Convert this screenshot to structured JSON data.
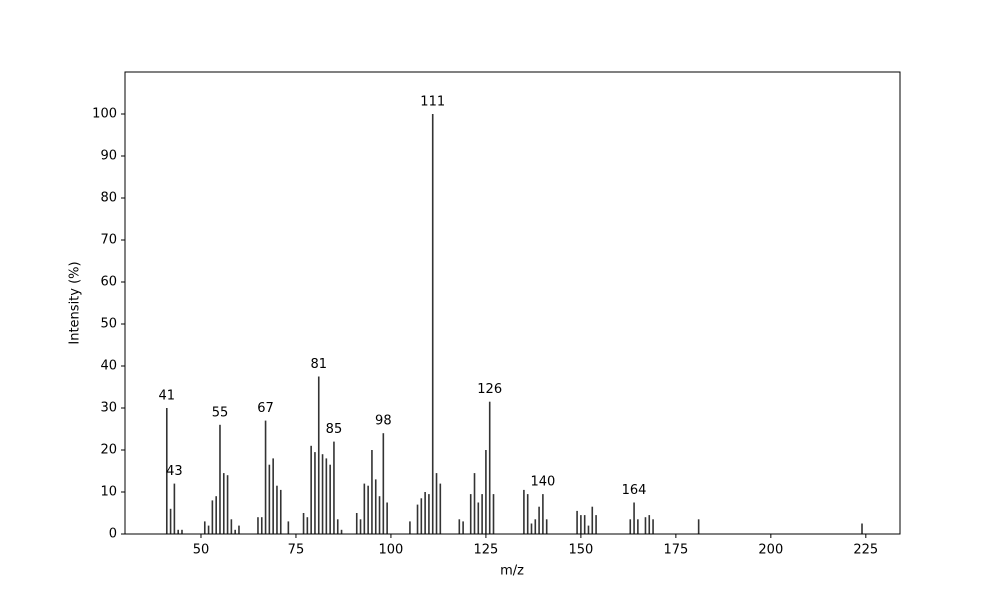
{
  "chart_data": {
    "type": "spectrum",
    "xlabel": "m/z",
    "ylabel": "Intensity (%)",
    "x": [
      41,
      42,
      43,
      44,
      45,
      51,
      52,
      53,
      54,
      55,
      56,
      57,
      58,
      59,
      60,
      65,
      66,
      67,
      68,
      69,
      70,
      71,
      73,
      77,
      78,
      79,
      80,
      81,
      82,
      83,
      84,
      85,
      86,
      87,
      91,
      92,
      93,
      94,
      95,
      96,
      97,
      98,
      99,
      105,
      107,
      108,
      109,
      110,
      111,
      112,
      113,
      118,
      119,
      121,
      122,
      123,
      124,
      125,
      126,
      127,
      135,
      136,
      137,
      138,
      139,
      140,
      141,
      149,
      150,
      151,
      152,
      153,
      154,
      163,
      164,
      165,
      167,
      168,
      169,
      181,
      224
    ],
    "values": [
      30,
      6,
      12,
      1,
      1,
      3,
      2,
      8,
      9,
      26,
      14.5,
      14,
      3.5,
      1,
      2,
      4,
      4,
      27,
      16.5,
      18,
      11.5,
      10.5,
      3,
      5,
      4,
      21,
      19.5,
      37.5,
      19,
      18,
      16.5,
      22,
      3.5,
      1,
      5,
      3.5,
      12,
      11.5,
      20,
      13,
      9,
      24,
      7.5,
      3,
      7,
      8.5,
      10,
      9.5,
      100,
      14.5,
      12,
      3.5,
      3,
      9.5,
      14.5,
      7.5,
      9.5,
      20,
      31.5,
      9.5,
      10.5,
      9.5,
      2.5,
      3.5,
      6.5,
      9.5,
      3.5,
      5.5,
      4.5,
      4.5,
      2,
      6.5,
      4.5,
      3.5,
      7.5,
      3.5,
      4,
      4.5,
      3.5,
      3.5,
      2.5
    ],
    "x_labels": [
      "41",
      null,
      "43",
      null,
      null,
      null,
      null,
      null,
      null,
      "55",
      null,
      null,
      null,
      null,
      null,
      null,
      null,
      "67",
      null,
      null,
      null,
      null,
      null,
      null,
      null,
      null,
      null,
      "81",
      null,
      null,
      null,
      "85",
      null,
      null,
      null,
      null,
      null,
      null,
      null,
      null,
      null,
      "98",
      null,
      null,
      null,
      null,
      null,
      null,
      "111",
      null,
      null,
      null,
      null,
      null,
      null,
      null,
      null,
      null,
      "126",
      null,
      null,
      null,
      null,
      null,
      null,
      "140",
      null,
      null,
      null,
      null,
      null,
      null,
      null,
      null,
      "164",
      null,
      null,
      null,
      null,
      null,
      null
    ],
    "color": "#333333",
    "xlim": [
      30,
      234
    ],
    "xticks": [
      50,
      75,
      100,
      125,
      150,
      175,
      200,
      225
    ],
    "ylim": [
      0,
      110
    ],
    "yticks": [
      0,
      10,
      20,
      30,
      40,
      50,
      60,
      70,
      80,
      90,
      100
    ],
    "grid": false
  }
}
